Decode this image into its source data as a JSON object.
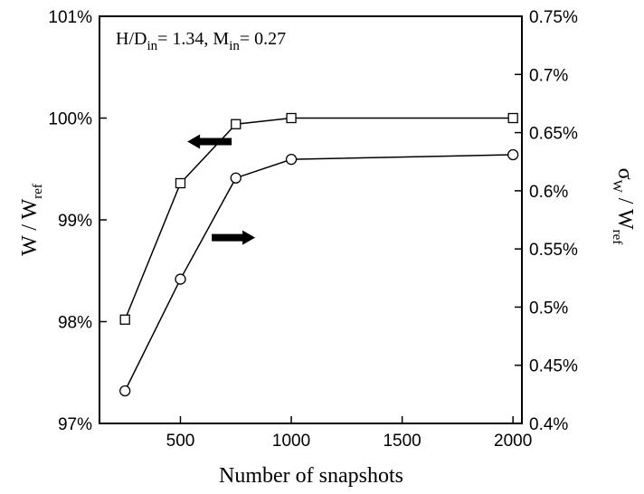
{
  "chart_data": {
    "type": "line",
    "xlabel": "Number of snapshots",
    "ylabel_left": {
      "main": "W / W",
      "sub": "ref"
    },
    "ylabel_right": {
      "sigma": "σ",
      "sigma_sub": "W",
      "rest": " / W",
      "rest_sub": "ref"
    },
    "annotation": {
      "p1": "H/D",
      "p1_sub": "in",
      "p2": "= 1.34, M",
      "p2_sub": "in",
      "p3": "= 0.27"
    },
    "x_ticks": [
      {
        "value": 500,
        "label": "500"
      },
      {
        "value": 1000,
        "label": "1000"
      },
      {
        "value": 1500,
        "label": "1500"
      },
      {
        "value": 2000,
        "label": "2000"
      }
    ],
    "y_left_ticks": [
      {
        "value": 97,
        "label": "97%"
      },
      {
        "value": 98,
        "label": "98%"
      },
      {
        "value": 99,
        "label": "99%"
      },
      {
        "value": 100,
        "label": "100%"
      },
      {
        "value": 101,
        "label": "101%"
      }
    ],
    "y_right_ticks": [
      {
        "value": 0.4,
        "label": "0.4%"
      },
      {
        "value": 0.45,
        "label": "0.45%"
      },
      {
        "value": 0.5,
        "label": "0.5%"
      },
      {
        "value": 0.55,
        "label": "0.55%"
      },
      {
        "value": 0.6,
        "label": "0.6%"
      },
      {
        "value": 0.65,
        "label": "0.65%"
      },
      {
        "value": 0.7,
        "label": "0.7%"
      },
      {
        "value": 0.75,
        "label": "0.75%"
      }
    ],
    "xlim": [
      135,
      2040
    ],
    "ylim_left": [
      97,
      101
    ],
    "ylim_right": [
      0.4,
      0.75
    ],
    "grid": false,
    "series": [
      {
        "axis": "left",
        "marker": "square",
        "x": [
          250,
          500,
          750,
          1000,
          2000
        ],
        "y": [
          98.02,
          99.36,
          99.94,
          100.0,
          100.0
        ]
      },
      {
        "axis": "right",
        "marker": "circle",
        "x": [
          250,
          500,
          750,
          1000,
          2000
        ],
        "y": [
          0.428,
          0.524,
          0.611,
          0.627,
          0.631
        ]
      }
    ],
    "arrows": [
      {
        "points_to": "left",
        "series_index": 0
      },
      {
        "points_to": "right",
        "series_index": 1
      }
    ]
  }
}
